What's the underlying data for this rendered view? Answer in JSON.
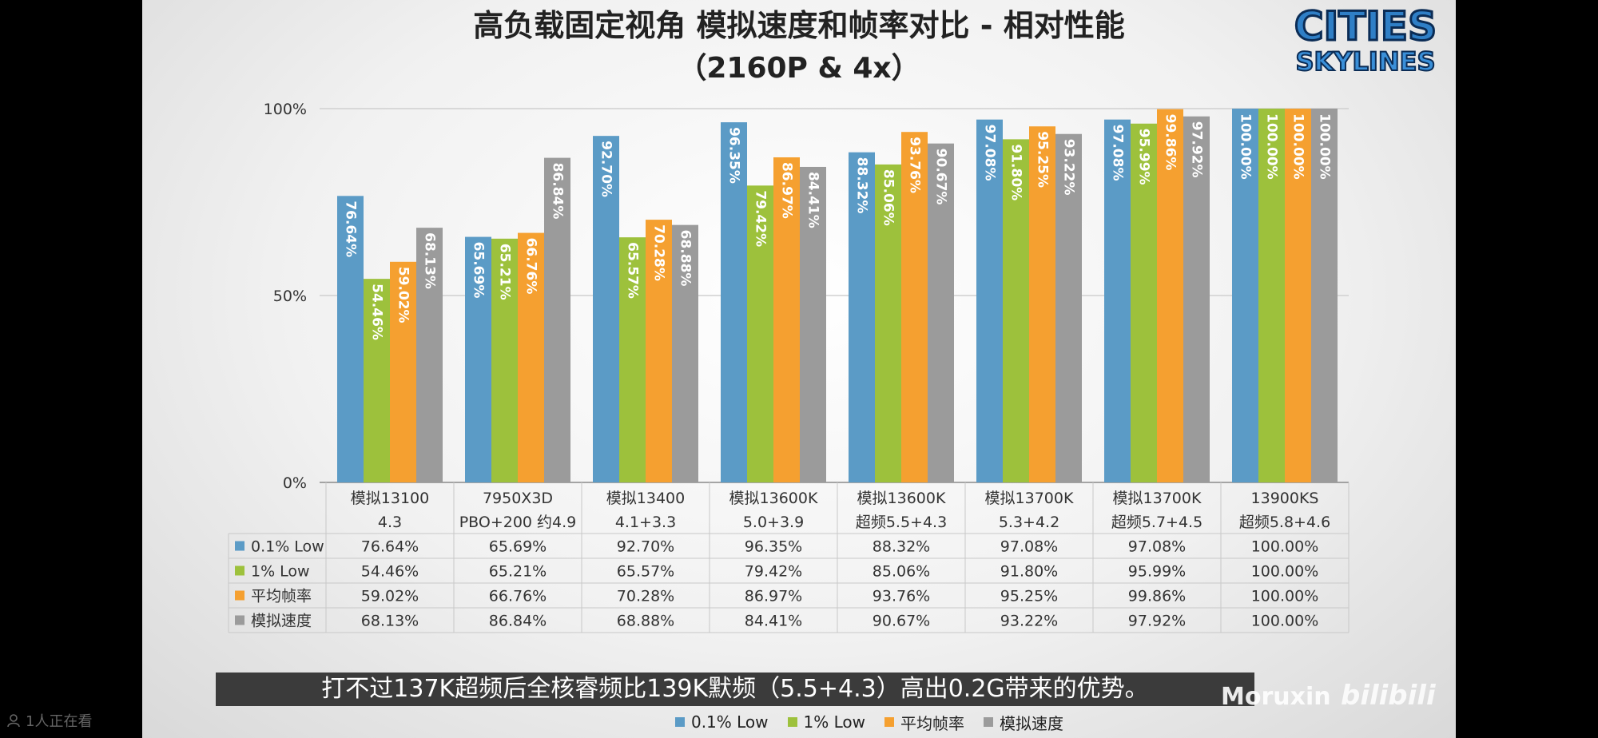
{
  "title": "高负载固定视角 模拟速度和帧率对比 - 相对性能",
  "subtitle": "（2160P & 4x）",
  "logo": {
    "line1": "CITIES",
    "line2": "SKYLINES"
  },
  "caption": "打不过137K超频后全核睿频比139K默频（5.5+4.3）高出0.2G带来的优势。",
  "watermark": {
    "author": "Moruxin",
    "site": "bilibili"
  },
  "viewers": "1人正在看",
  "colors": {
    "s1": "#5b9bc6",
    "s2": "#9dc13c",
    "s3": "#f5a030",
    "s4": "#9b9b9b"
  },
  "chart_data": {
    "type": "bar",
    "ylim": [
      0,
      100
    ],
    "ytick_labels": [
      "0%",
      "50%",
      "100%"
    ],
    "categories": [
      [
        "模拟13100",
        "4.3"
      ],
      [
        "7950X3D",
        "PBO+200 约4.9"
      ],
      [
        "模拟13400",
        "4.1+3.3"
      ],
      [
        "模拟13600K",
        "5.0+3.9"
      ],
      [
        "模拟13600K",
        "超频5.5+4.3"
      ],
      [
        "模拟13700K",
        "5.3+4.2"
      ],
      [
        "模拟13700K",
        "超频5.7+4.5"
      ],
      [
        "13900KS",
        "超频5.8+4.6"
      ]
    ],
    "series": [
      {
        "name": "0.1% Low",
        "values": [
          76.64,
          65.69,
          92.7,
          96.35,
          88.32,
          97.08,
          97.08,
          100.0
        ],
        "labels": [
          "76.64%",
          "65.69%",
          "92.70%",
          "96.35%",
          "88.32%",
          "97.08%",
          "97.08%",
          "100.00%"
        ]
      },
      {
        "name": "1% Low",
        "values": [
          54.46,
          65.21,
          65.57,
          79.42,
          85.06,
          91.8,
          95.99,
          100.0
        ],
        "labels": [
          "54.46%",
          "65.21%",
          "65.57%",
          "79.42%",
          "85.06%",
          "91.80%",
          "95.99%",
          "100.00%"
        ]
      },
      {
        "name": "平均帧率",
        "values": [
          59.02,
          66.76,
          70.28,
          86.97,
          93.76,
          95.25,
          99.86,
          100.0
        ],
        "labels": [
          "59.02%",
          "66.76%",
          "70.28%",
          "86.97%",
          "93.76%",
          "95.25%",
          "99.86%",
          "100.00%"
        ]
      },
      {
        "name": "模拟速度",
        "values": [
          68.13,
          86.84,
          68.88,
          84.41,
          90.67,
          93.22,
          97.92,
          100.0
        ],
        "labels": [
          "68.13%",
          "86.84%",
          "68.88%",
          "84.41%",
          "90.67%",
          "93.22%",
          "97.92%",
          "100.00%"
        ]
      }
    ],
    "legend_position": "bottom",
    "grid": true
  }
}
